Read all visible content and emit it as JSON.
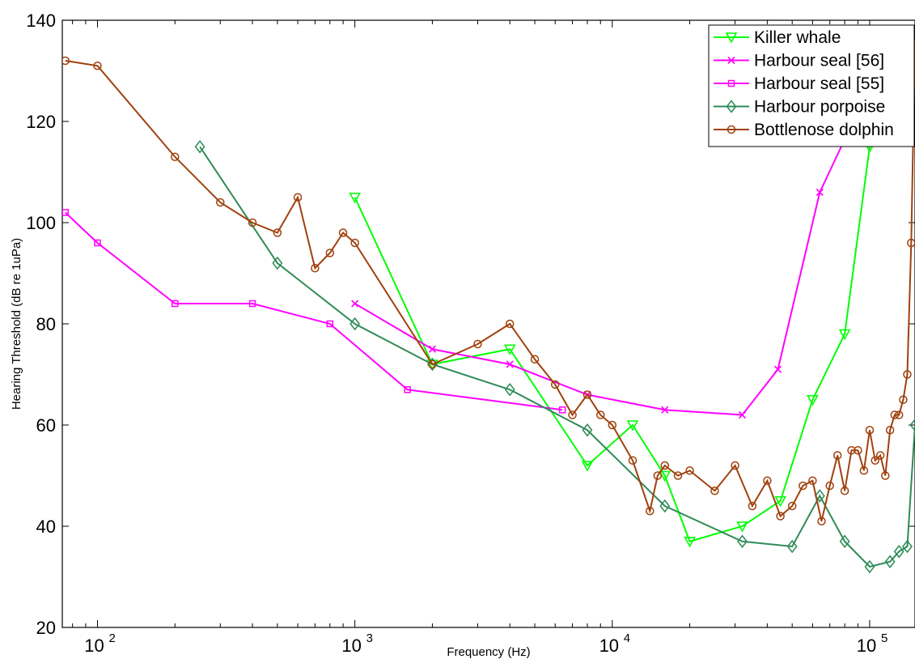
{
  "chart_data": {
    "type": "line",
    "title": "",
    "xlabel": "Frequency (Hz)",
    "ylabel": "Hearing Threshold (dB re 1uPa)",
    "xscale": "log",
    "xlim": [
      73,
      150000
    ],
    "ylim": [
      20,
      140
    ],
    "yticks": [
      "20",
      "40",
      "60",
      "80",
      "100",
      "120",
      "140"
    ],
    "xticks": [
      {
        "base": "10",
        "exp": "2",
        "value": 100
      },
      {
        "base": "10",
        "exp": "3",
        "value": 1000
      },
      {
        "base": "10",
        "exp": "4",
        "value": 10000
      },
      {
        "base": "10",
        "exp": "5",
        "value": 100000
      }
    ],
    "grid": false,
    "legend_position": "top-right",
    "series": [
      {
        "name": "Killer whale",
        "color": "#00ff00",
        "marker": "triangle-down",
        "x": [
          1000,
          2000,
          4000,
          8000,
          12000,
          16000,
          20000,
          32000,
          45000,
          60000,
          80000,
          100000,
          150000
        ],
        "y": [
          105,
          72,
          75,
          52,
          60,
          50,
          37,
          40,
          45,
          65,
          78,
          115,
          135
        ]
      },
      {
        "name": "Harbour seal [56]",
        "color": "#ff00ff",
        "marker": "x",
        "x": [
          1000,
          2000,
          4000,
          8000,
          16000,
          32000,
          44000,
          64000,
          90000
        ],
        "y": [
          84,
          75,
          72,
          66,
          63,
          62,
          71,
          106,
          122
        ]
      },
      {
        "name": "Harbour seal [55]",
        "color": "#ff00ff",
        "marker": "square",
        "x": [
          75,
          100,
          200,
          400,
          800,
          1600,
          6400
        ],
        "y": [
          102,
          96,
          84,
          84,
          80,
          67,
          63
        ]
      },
      {
        "name": "Harbour porpoise",
        "color": "#2e8b57",
        "marker": "diamond",
        "x": [
          250,
          500,
          1000,
          2000,
          4000,
          8000,
          16000,
          32000,
          50000,
          64000,
          80000,
          100000,
          120000,
          130000,
          140000,
          150000
        ],
        "y": [
          115,
          92,
          80,
          72,
          67,
          59,
          44,
          37,
          36,
          46,
          37,
          32,
          33,
          35,
          36,
          60
        ]
      },
      {
        "name": "Bottlenose dolphin",
        "color": "#a0410d",
        "marker": "circle",
        "x": [
          75,
          100,
          200,
          300,
          400,
          500,
          600,
          700,
          800,
          900,
          1000,
          2000,
          3000,
          4000,
          5000,
          6000,
          7000,
          8000,
          9000,
          10000,
          12000,
          14000,
          15000,
          16000,
          18000,
          20000,
          25000,
          30000,
          35000,
          40000,
          45000,
          50000,
          55000,
          60000,
          65000,
          70000,
          75000,
          80000,
          85000,
          90000,
          95000,
          100000,
          105000,
          110000,
          115000,
          120000,
          125000,
          130000,
          135000,
          140000,
          145000,
          150000
        ],
        "y": [
          132,
          131,
          113,
          104,
          100,
          98,
          105,
          91,
          94,
          98,
          96,
          72,
          76,
          80,
          73,
          68,
          62,
          66,
          62,
          60,
          53,
          43,
          50,
          52,
          50,
          51,
          47,
          52,
          44,
          49,
          42,
          44,
          48,
          49,
          41,
          48,
          54,
          47,
          55,
          55,
          51,
          59,
          53,
          54,
          50,
          59,
          62,
          62,
          65,
          70,
          96,
          136
        ]
      }
    ]
  }
}
